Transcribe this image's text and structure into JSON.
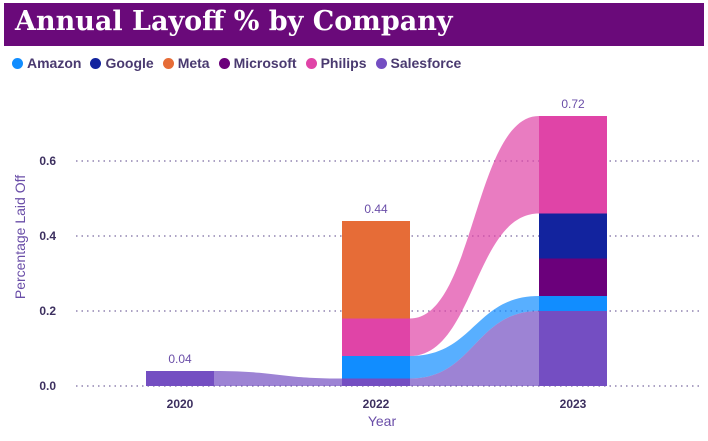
{
  "chart_data": {
    "type": "bar",
    "stacked": true,
    "ribbons": true,
    "title": "Annual Layoff % by Company",
    "xlabel": "Year",
    "ylabel": "Percentage Laid Off",
    "categories": [
      "2020",
      "2022",
      "2023"
    ],
    "ylim": [
      0,
      0.8
    ],
    "yticks": [
      0.0,
      0.2,
      0.4,
      0.6
    ],
    "ytick_labels": [
      "0.0",
      "0.2",
      "0.4",
      "0.6"
    ],
    "grid": true,
    "legend_position": "top-left",
    "totals": [
      "0.04",
      "0.44",
      "0.72"
    ],
    "series": [
      {
        "name": "Amazon",
        "color": "#118dff",
        "values": [
          0,
          0.06,
          0.04
        ]
      },
      {
        "name": "Google",
        "color": "#12239e",
        "values": [
          0,
          0,
          0.12
        ]
      },
      {
        "name": "Meta",
        "color": "#e66c37",
        "values": [
          0,
          0.26,
          0
        ]
      },
      {
        "name": "Microsoft",
        "color": "#6b007b",
        "values": [
          0,
          0,
          0.1
        ]
      },
      {
        "name": "Philips",
        "color": "#e044a7",
        "values": [
          0,
          0.1,
          0.26
        ]
      },
      {
        "name": "Salesforce",
        "color": "#744ec2",
        "values": [
          0.04,
          0.02,
          0.2
        ]
      }
    ]
  }
}
